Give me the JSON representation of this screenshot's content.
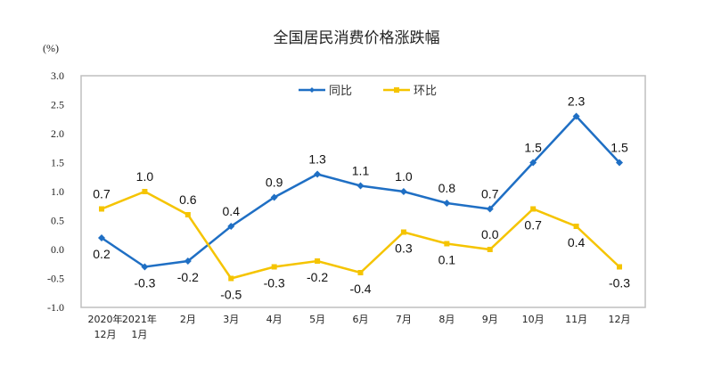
{
  "chart_data": {
    "type": "line",
    "title": "全国居民消费价格涨跌幅",
    "ylabel": "(%)",
    "ylim": [
      -1.0,
      3.0
    ],
    "yticks": [
      "3.0",
      "2.5",
      "2.0",
      "1.5",
      "1.0",
      "0.5",
      "0.0",
      "-0.5",
      "-1.0"
    ],
    "grid": false,
    "legend": "top-center",
    "categories": [
      [
        "2020年",
        "12月"
      ],
      [
        "2021年",
        "1月"
      ],
      [
        "2月"
      ],
      [
        "3月"
      ],
      [
        "4月"
      ],
      [
        "5月"
      ],
      [
        "6月"
      ],
      [
        "7月"
      ],
      [
        "8月"
      ],
      [
        "9月"
      ],
      [
        "10月"
      ],
      [
        "11月"
      ],
      [
        "12月"
      ]
    ],
    "series": [
      {
        "name": "同比",
        "color": "#1f6fc4",
        "marker": "diamond",
        "values": [
          0.2,
          -0.3,
          -0.2,
          0.4,
          0.9,
          1.3,
          1.1,
          1.0,
          0.8,
          0.7,
          1.5,
          2.3,
          1.5
        ]
      },
      {
        "name": "环比",
        "color": "#f5c400",
        "marker": "square",
        "values": [
          0.7,
          1.0,
          0.6,
          -0.5,
          -0.3,
          -0.2,
          -0.4,
          0.3,
          0.1,
          0.0,
          0.7,
          0.4,
          -0.3
        ]
      }
    ]
  }
}
